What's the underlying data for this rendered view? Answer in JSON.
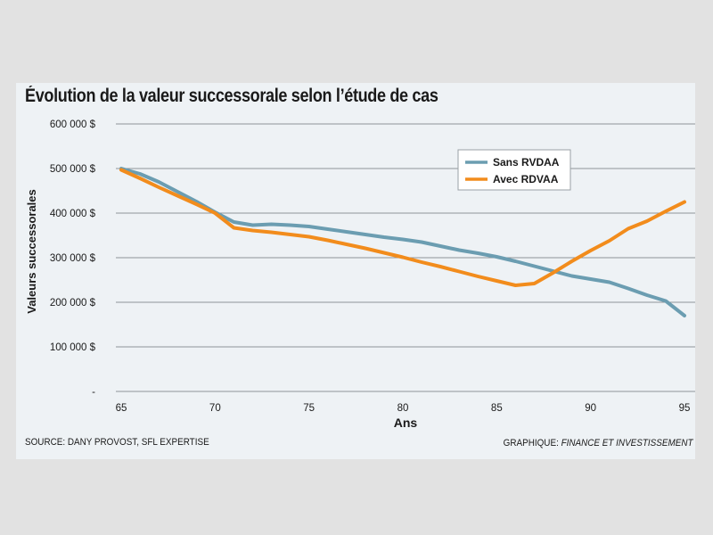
{
  "chart_data": {
    "type": "line",
    "title": "Évolution de la valeur successorale selon l’étude de cas",
    "xlabel": "Ans",
    "ylabel": "Valeurs successorales",
    "x_ticks": [
      65,
      70,
      75,
      80,
      85,
      90,
      95
    ],
    "y_ticks": [
      {
        "value": 0,
        "label": "-"
      },
      {
        "value": 100000,
        "label": "100 000 $"
      },
      {
        "value": 200000,
        "label": "200 000 $"
      },
      {
        "value": 300000,
        "label": "300 000 $"
      },
      {
        "value": 400000,
        "label": "400 000 $"
      },
      {
        "value": 500000,
        "label": "500 000 $"
      },
      {
        "value": 600000,
        "label": "600 000 $"
      }
    ],
    "xlim": [
      65,
      95
    ],
    "ylim": [
      0,
      600000
    ],
    "grid": "horizontal",
    "legend_position": "top-right",
    "series": [
      {
        "name": "Sans RVDAA",
        "color": "#6b9db1",
        "x": [
          65,
          66,
          67,
          68,
          69,
          70,
          71,
          72,
          73,
          74,
          75,
          76,
          77,
          78,
          79,
          80,
          81,
          82,
          83,
          84,
          85,
          86,
          87,
          88,
          89,
          90,
          91,
          92,
          93,
          94,
          95
        ],
        "y": [
          500000,
          488000,
          470000,
          448000,
          426000,
          402000,
          380000,
          373000,
          375000,
          373000,
          370000,
          364000,
          358000,
          352000,
          346000,
          341000,
          335000,
          326000,
          317000,
          310000,
          302000,
          292000,
          281000,
          270000,
          259000,
          252000,
          245000,
          231000,
          216000,
          203000,
          170000
        ]
      },
      {
        "name": "Avec RDVAA",
        "color": "#f28c1c",
        "x": [
          65,
          66,
          67,
          68,
          69,
          70,
          71,
          72,
          73,
          74,
          75,
          76,
          77,
          78,
          79,
          80,
          81,
          82,
          83,
          84,
          85,
          86,
          87,
          88,
          89,
          90,
          91,
          92,
          93,
          94,
          95
        ],
        "y": [
          497000,
          478000,
          458000,
          439000,
          420000,
          400000,
          367000,
          361000,
          357000,
          352000,
          347000,
          339000,
          330000,
          321000,
          311000,
          301000,
          290000,
          280000,
          269000,
          258000,
          248000,
          238000,
          242000,
          266000,
          292000,
          316000,
          338000,
          365000,
          382000,
          404000,
          425000
        ]
      }
    ],
    "source": "SOURCE: DANY PROVOST, SFL EXPERTISE",
    "credit_prefix": "GRAPHIQUE: ",
    "credit_name": "FINANCE ET INVESTISSEMENT"
  }
}
